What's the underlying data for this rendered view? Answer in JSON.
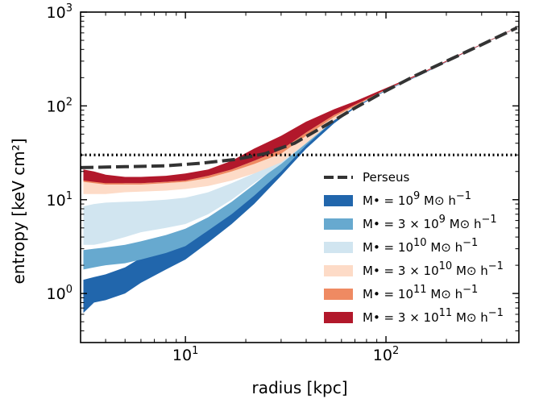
{
  "chart_data": {
    "type": "area",
    "xlabel": "radius [kpc]",
    "ylabel": "entropy [keV cm²]",
    "x_scale": "log",
    "y_scale": "log",
    "xlim": [
      3,
      460
    ],
    "ylim": [
      0.3,
      1000
    ],
    "grid": false,
    "legend_position": "lower-right",
    "x_ticks": [
      {
        "value": 10,
        "base": "10",
        "exp": "1"
      },
      {
        "value": 100,
        "base": "10",
        "exp": "2"
      }
    ],
    "y_ticks": [
      {
        "value": 1,
        "base": "10",
        "exp": "0"
      },
      {
        "value": 10,
        "base": "10",
        "exp": "1"
      },
      {
        "value": 100,
        "base": "10",
        "exp": "2"
      },
      {
        "value": 1000,
        "base": "10",
        "exp": "3"
      }
    ],
    "threshold_line": {
      "y": 30,
      "style": "dotted",
      "color": "#000000"
    },
    "series": [
      {
        "name": "Perseus",
        "kind": "line",
        "style": "dashed",
        "color": "#333333",
        "x": [
          3,
          5,
          8,
          12,
          18,
          25,
          35,
          50,
          70,
          100,
          140,
          200,
          300,
          450
        ],
        "y": [
          22,
          22.5,
          23,
          24.5,
          27,
          31,
          40,
          62,
          95,
          145,
          210,
          300,
          450,
          680
        ]
      },
      {
        "name": "M• = 10^9 M⊙ h⁻¹",
        "kind": "band",
        "color": "#2166ac",
        "x": [
          3.1,
          3.5,
          4,
          5,
          6,
          8,
          10,
          13,
          17,
          22,
          30,
          40,
          55,
          70,
          100,
          150,
          250,
          450
        ],
        "lower": [
          0.62,
          0.8,
          0.85,
          1.0,
          1.3,
          1.8,
          2.3,
          3.5,
          5.5,
          9,
          18,
          35,
          65,
          95,
          145,
          215,
          370,
          680
        ],
        "upper": [
          1.4,
          1.5,
          1.6,
          1.9,
          2.4,
          3.0,
          3.7,
          5.5,
          9,
          14,
          25,
          45,
          75,
          100,
          150,
          220,
          375,
          685
        ]
      },
      {
        "name": "M• = 3 × 10^9 M⊙ h⁻¹",
        "kind": "band",
        "color": "#67a9cf",
        "x": [
          3.1,
          3.5,
          4,
          5,
          6,
          8,
          10,
          13,
          17,
          22,
          30,
          40,
          55,
          70,
          100,
          150,
          250,
          450
        ],
        "lower": [
          1.8,
          1.9,
          2.0,
          2.1,
          2.3,
          2.7,
          3.2,
          4.7,
          7,
          11,
          20,
          38,
          70,
          98,
          148,
          218,
          372,
          682
        ],
        "upper": [
          2.9,
          3.0,
          3.1,
          3.3,
          3.6,
          4.2,
          4.9,
          6.5,
          9.5,
          14.5,
          25,
          45,
          75,
          100,
          150,
          220,
          375,
          685
        ]
      },
      {
        "name": "M• = 10^10 M⊙ h⁻¹",
        "kind": "band",
        "color": "#d1e5f0",
        "x": [
          3.1,
          3.5,
          4,
          5,
          6,
          8,
          10,
          13,
          17,
          22,
          30,
          40,
          55,
          70,
          100,
          150,
          250,
          450
        ],
        "lower": [
          3.3,
          3.3,
          3.5,
          4.0,
          4.5,
          5.0,
          5.5,
          7.0,
          10,
          15,
          24,
          40,
          70,
          98,
          148,
          218,
          372,
          682
        ],
        "upper": [
          8.5,
          9.0,
          9.3,
          9.5,
          9.6,
          10,
          10.5,
          12,
          15,
          19,
          28,
          45,
          75,
          100,
          150,
          220,
          375,
          685
        ]
      },
      {
        "name": "M• = 3 × 10^10 M⊙ h⁻¹",
        "kind": "band",
        "color": "#fddbc7",
        "x": [
          3.1,
          3.5,
          4,
          5,
          6,
          8,
          10,
          13,
          17,
          22,
          30,
          40,
          55,
          70,
          100,
          150,
          250,
          450
        ],
        "lower": [
          11.5,
          11.5,
          11.5,
          12,
          12.2,
          12.5,
          13,
          14,
          16,
          19,
          25,
          40,
          70,
          98,
          148,
          218,
          372,
          682
        ],
        "upper": [
          16,
          15.5,
          15,
          14.5,
          14.5,
          15,
          15.5,
          17,
          20,
          24,
          32,
          50,
          78,
          102,
          150,
          220,
          375,
          685
        ]
      },
      {
        "name": "M• = 10^11 M⊙ h⁻¹",
        "kind": "band",
        "color": "#ef8a62",
        "x": [
          3.1,
          3.5,
          4,
          5,
          6,
          8,
          10,
          13,
          17,
          22,
          30,
          40,
          55,
          70,
          100,
          150,
          250,
          450
        ],
        "lower": [
          15.5,
          15,
          14.5,
          14.5,
          14.5,
          15,
          15.5,
          17,
          20,
          24,
          31,
          48,
          76,
          100,
          149,
          219,
          373,
          683
        ],
        "upper": [
          16.5,
          16,
          15.5,
          15,
          15,
          15.5,
          16,
          18,
          21,
          26,
          34,
          52,
          80,
          104,
          151,
          221,
          376,
          686
        ]
      },
      {
        "name": "M• = 3 × 10^11 M⊙ h⁻¹",
        "kind": "band",
        "color": "#b2182b",
        "x": [
          3.1,
          3.5,
          4,
          5,
          6,
          8,
          10,
          13,
          17,
          22,
          30,
          40,
          55,
          70,
          100,
          150,
          250,
          450
        ],
        "lower": [
          16,
          15.5,
          15,
          15,
          15,
          15.5,
          16,
          18,
          21,
          26,
          34,
          52,
          80,
          103,
          150,
          220,
          374,
          684
        ],
        "upper": [
          21,
          20,
          18.5,
          17.5,
          17.5,
          18,
          19,
          21,
          26,
          35,
          48,
          68,
          92,
          112,
          155,
          225,
          380,
          690
        ]
      }
    ],
    "legend": [
      {
        "kind": "line",
        "color": "#333333",
        "prefix": "Perseus"
      },
      {
        "kind": "patch",
        "color": "#2166ac",
        "prefix": "M• = ",
        "base": "10",
        "exp": "9",
        "suffix": " M⊙ h",
        "suffix_exp": "−1"
      },
      {
        "kind": "patch",
        "color": "#67a9cf",
        "prefix": "M• = 3 × ",
        "base": "10",
        "exp": "9",
        "suffix": " M⊙ h",
        "suffix_exp": "−1"
      },
      {
        "kind": "patch",
        "color": "#d1e5f0",
        "prefix": "M• = ",
        "base": "10",
        "exp": "10",
        "suffix": " M⊙ h",
        "suffix_exp": "−1"
      },
      {
        "kind": "patch",
        "color": "#fddbc7",
        "prefix": "M• = 3 × ",
        "base": "10",
        "exp": "10",
        "suffix": " M⊙ h",
        "suffix_exp": "−1"
      },
      {
        "kind": "patch",
        "color": "#ef8a62",
        "prefix": "M• = ",
        "base": "10",
        "exp": "11",
        "suffix": " M⊙ h",
        "suffix_exp": "−1"
      },
      {
        "kind": "patch",
        "color": "#b2182b",
        "prefix": "M• = 3 × ",
        "base": "10",
        "exp": "11",
        "suffix": " M⊙ h",
        "suffix_exp": "−1"
      }
    ]
  }
}
